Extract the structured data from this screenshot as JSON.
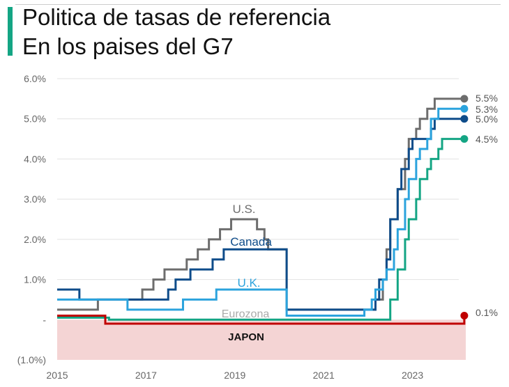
{
  "title_line1": "Politica de tasas de referencia",
  "title_line2": "En los paises del G7",
  "chart_data": {
    "type": "line",
    "step": true,
    "xlim": [
      2015,
      2024.2
    ],
    "ylim": [
      -1,
      6
    ],
    "grid": true,
    "yticks": [
      {
        "v": 6,
        "label": "6.0%"
      },
      {
        "v": 5,
        "label": "5.0%"
      },
      {
        "v": 4,
        "label": "4.0%"
      },
      {
        "v": 3,
        "label": "3.0%"
      },
      {
        "v": 2,
        "label": "2.0%"
      },
      {
        "v": 1,
        "label": "1.0%"
      },
      {
        "v": 0,
        "label": "-"
      },
      {
        "v": -1,
        "label": "(1.0%)"
      }
    ],
    "xticks": [
      "2015",
      "2017",
      "2019",
      "2021",
      "2023"
    ],
    "negative_band_color": "#f4d4d4",
    "series": [
      {
        "name": "U.S.",
        "color": "#6d6d6d",
        "end_label": "5.5%",
        "label_color": "#6d6d6d",
        "points": [
          [
            "2015-01",
            0.25
          ],
          [
            "2015-12",
            0.5
          ],
          [
            "2016-12",
            0.75
          ],
          [
            "2017-03",
            1.0
          ],
          [
            "2017-06",
            1.25
          ],
          [
            "2017-12",
            1.5
          ],
          [
            "2018-03",
            1.75
          ],
          [
            "2018-06",
            2.0
          ],
          [
            "2018-09",
            2.25
          ],
          [
            "2018-12",
            2.5
          ],
          [
            "2019-07",
            2.25
          ],
          [
            "2019-09",
            2.0
          ],
          [
            "2019-10",
            1.75
          ],
          [
            "2020-03",
            0.25
          ],
          [
            "2022-03",
            0.5
          ],
          [
            "2022-05",
            1.0
          ],
          [
            "2022-06",
            1.75
          ],
          [
            "2022-07",
            2.5
          ],
          [
            "2022-09",
            3.25
          ],
          [
            "2022-11",
            4.0
          ],
          [
            "2022-12",
            4.5
          ],
          [
            "2023-02",
            4.75
          ],
          [
            "2023-03",
            5.0
          ],
          [
            "2023-05",
            5.25
          ],
          [
            "2023-07",
            5.5
          ],
          [
            "2024-03",
            5.5
          ]
        ]
      },
      {
        "name": "Canada",
        "color": "#0e4c8a",
        "end_label": "5.0%",
        "label_color": "#0e4c8a",
        "points": [
          [
            "2015-01",
            0.75
          ],
          [
            "2015-07",
            0.5
          ],
          [
            "2017-07",
            0.75
          ],
          [
            "2017-09",
            1.0
          ],
          [
            "2018-01",
            1.25
          ],
          [
            "2018-07",
            1.5
          ],
          [
            "2018-10",
            1.75
          ],
          [
            "2020-03",
            0.25
          ],
          [
            "2022-03",
            0.5
          ],
          [
            "2022-04",
            1.0
          ],
          [
            "2022-06",
            1.5
          ],
          [
            "2022-07",
            2.5
          ],
          [
            "2022-09",
            3.25
          ],
          [
            "2022-10",
            3.75
          ],
          [
            "2022-12",
            4.25
          ],
          [
            "2023-01",
            4.5
          ],
          [
            "2023-06",
            4.75
          ],
          [
            "2023-07",
            5.0
          ],
          [
            "2024-03",
            5.0
          ]
        ]
      },
      {
        "name": "U.K.",
        "color": "#2ba3dd",
        "end_label": "5.3%",
        "label_color": "#2ba3dd",
        "points": [
          [
            "2015-01",
            0.5
          ],
          [
            "2016-08",
            0.25
          ],
          [
            "2017-11",
            0.5
          ],
          [
            "2018-08",
            0.75
          ],
          [
            "2020-03",
            0.1
          ],
          [
            "2021-12",
            0.25
          ],
          [
            "2022-02",
            0.5
          ],
          [
            "2022-03",
            0.75
          ],
          [
            "2022-05",
            1.0
          ],
          [
            "2022-06",
            1.25
          ],
          [
            "2022-08",
            1.75
          ],
          [
            "2022-09",
            2.25
          ],
          [
            "2022-11",
            3.0
          ],
          [
            "2022-12",
            3.5
          ],
          [
            "2023-02",
            4.0
          ],
          [
            "2023-03",
            4.25
          ],
          [
            "2023-05",
            4.5
          ],
          [
            "2023-06",
            5.0
          ],
          [
            "2023-08",
            5.25
          ],
          [
            "2024-03",
            5.25
          ]
        ]
      },
      {
        "name": "Eurozona",
        "color": "#14a584",
        "end_label": "4.5%",
        "label_color": "#aaaaaa",
        "points": [
          [
            "2015-01",
            0.05
          ],
          [
            "2016-03",
            0.0
          ],
          [
            "2022-07",
            0.5
          ],
          [
            "2022-09",
            1.25
          ],
          [
            "2022-11",
            2.0
          ],
          [
            "2022-12",
            2.5
          ],
          [
            "2023-02",
            3.0
          ],
          [
            "2023-03",
            3.5
          ],
          [
            "2023-05",
            3.75
          ],
          [
            "2023-06",
            4.0
          ],
          [
            "2023-08",
            4.25
          ],
          [
            "2023-09",
            4.5
          ],
          [
            "2024-03",
            4.5
          ]
        ]
      },
      {
        "name": "JAPON",
        "color": "#c00000",
        "end_label": "0.1%",
        "label_color": "#111111",
        "points": [
          [
            "2015-01",
            0.1
          ],
          [
            "2016-02",
            -0.1
          ],
          [
            "2024-03",
            -0.1
          ],
          [
            "2024-03",
            0.1
          ]
        ]
      }
    ]
  }
}
